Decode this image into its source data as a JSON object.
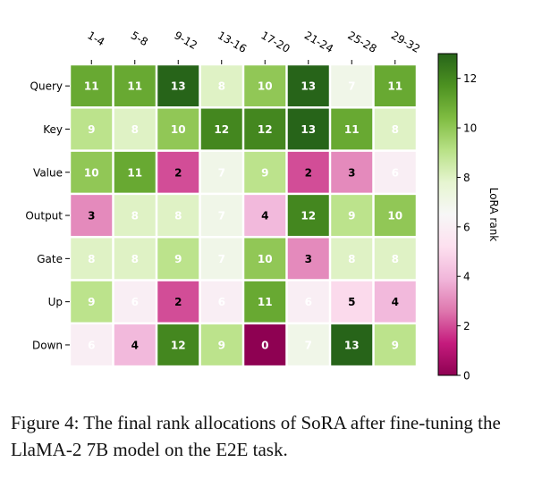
{
  "chart_data": {
    "type": "heatmap",
    "title": "",
    "xlabel": "",
    "ylabel": "",
    "x_categories": [
      "1-4",
      "5-8",
      "9-12",
      "13-16",
      "17-20",
      "21-24",
      "25-28",
      "29-32"
    ],
    "y_categories": [
      "Query",
      "Key",
      "Value",
      "Output",
      "Gate",
      "Up",
      "Down"
    ],
    "values": [
      [
        11,
        11,
        13,
        8,
        10,
        13,
        7,
        11
      ],
      [
        9,
        8,
        10,
        12,
        12,
        13,
        11,
        8
      ],
      [
        10,
        11,
        2,
        7,
        9,
        2,
        3,
        6
      ],
      [
        3,
        8,
        8,
        7,
        4,
        12,
        9,
        10
      ],
      [
        8,
        8,
        9,
        7,
        10,
        3,
        8,
        8
      ],
      [
        9,
        6,
        2,
        6,
        11,
        6,
        5,
        4
      ],
      [
        6,
        4,
        12,
        9,
        0,
        7,
        13,
        9
      ]
    ],
    "colorbar": {
      "label": "LoRA rank",
      "range": [
        0,
        13
      ],
      "ticks": [
        0,
        2,
        4,
        6,
        8,
        10,
        12
      ],
      "colormap": "PiYG"
    }
  },
  "caption": {
    "text": "Figure 4: The final rank allocations of SoRA after fine-tuning the LlaMA-2 7B model on the E2E task."
  }
}
